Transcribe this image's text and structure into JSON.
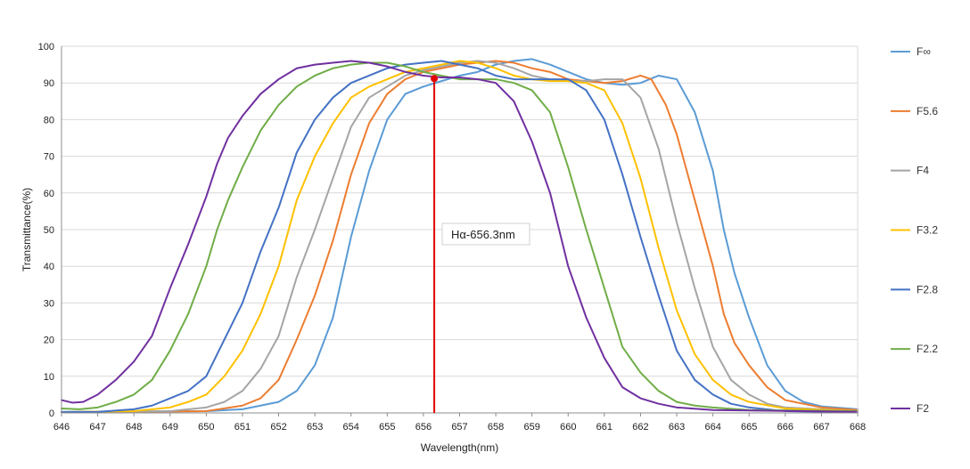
{
  "chart_data": {
    "type": "line",
    "title": "",
    "xlabel": "Wavelength(nm)",
    "ylabel": "Transmittance(%)",
    "xlim": [
      646,
      668
    ],
    "ylim": [
      0,
      100
    ],
    "xticks": [
      646,
      647,
      648,
      649,
      650,
      651,
      652,
      653,
      654,
      655,
      656,
      657,
      658,
      659,
      660,
      661,
      662,
      663,
      664,
      665,
      666,
      667,
      668
    ],
    "yticks": [
      0,
      10,
      20,
      30,
      40,
      50,
      60,
      70,
      80,
      90,
      100
    ],
    "grid": "horizontal",
    "legend_position": "right",
    "annotation": {
      "label": "Hα-656.3nm",
      "x": 656.3,
      "y": 91.2,
      "color": "#e00000"
    },
    "series": [
      {
        "name": "F∞",
        "color": "#5b9bd5",
        "points": [
          [
            646,
            0.3
          ],
          [
            650,
            0.5
          ],
          [
            651,
            1
          ],
          [
            652,
            3
          ],
          [
            652.5,
            6
          ],
          [
            653,
            13
          ],
          [
            653.5,
            26
          ],
          [
            654,
            48
          ],
          [
            654.5,
            66
          ],
          [
            655,
            80
          ],
          [
            655.5,
            87
          ],
          [
            656,
            89
          ],
          [
            656.5,
            90.5
          ],
          [
            657,
            92
          ],
          [
            657.5,
            93
          ],
          [
            658,
            95
          ],
          [
            658.5,
            96
          ],
          [
            659,
            96.5
          ],
          [
            659.5,
            95
          ],
          [
            660,
            93
          ],
          [
            660.5,
            91
          ],
          [
            661,
            90
          ],
          [
            661.5,
            89.5
          ],
          [
            662,
            90
          ],
          [
            662.5,
            92
          ],
          [
            663,
            91
          ],
          [
            663.5,
            82
          ],
          [
            664,
            66
          ],
          [
            664.3,
            50
          ],
          [
            664.6,
            38
          ],
          [
            665,
            26
          ],
          [
            665.5,
            13
          ],
          [
            666,
            6
          ],
          [
            666.5,
            3
          ],
          [
            667,
            1.8
          ],
          [
            668,
            1
          ]
        ]
      },
      {
        "name": "F5.6",
        "color": "#ed7d31",
        "points": [
          [
            646,
            0.2
          ],
          [
            650,
            0.5
          ],
          [
            651,
            2
          ],
          [
            651.5,
            4
          ],
          [
            652,
            9
          ],
          [
            652.5,
            20
          ],
          [
            653,
            32
          ],
          [
            653.5,
            47
          ],
          [
            654,
            65
          ],
          [
            654.5,
            79
          ],
          [
            655,
            87
          ],
          [
            655.5,
            91
          ],
          [
            656,
            93
          ],
          [
            656.5,
            94
          ],
          [
            657,
            95
          ],
          [
            657.5,
            95.5
          ],
          [
            658,
            96
          ],
          [
            658.5,
            95.5
          ],
          [
            659,
            94
          ],
          [
            659.5,
            93
          ],
          [
            660,
            91
          ],
          [
            660.5,
            90.5
          ],
          [
            661,
            90
          ],
          [
            661.5,
            90.5
          ],
          [
            662,
            92
          ],
          [
            662.3,
            91
          ],
          [
            662.7,
            84
          ],
          [
            663,
            76
          ],
          [
            663.5,
            58
          ],
          [
            664,
            40
          ],
          [
            664.3,
            27
          ],
          [
            664.6,
            19
          ],
          [
            665,
            13
          ],
          [
            665.5,
            7
          ],
          [
            666,
            3.5
          ],
          [
            667,
            1.5
          ],
          [
            668,
            0.8
          ]
        ]
      },
      {
        "name": "F4",
        "color": "#a5a5a5",
        "points": [
          [
            646,
            0.2
          ],
          [
            649,
            0.5
          ],
          [
            650,
            1.5
          ],
          [
            650.5,
            3
          ],
          [
            651,
            6
          ],
          [
            651.5,
            12
          ],
          [
            652,
            21
          ],
          [
            652.5,
            37
          ],
          [
            653,
            50
          ],
          [
            653.5,
            64
          ],
          [
            654,
            78
          ],
          [
            654.5,
            86
          ],
          [
            655,
            89
          ],
          [
            655.5,
            92
          ],
          [
            656,
            93.5
          ],
          [
            656.5,
            94.5
          ],
          [
            657,
            95.5
          ],
          [
            657.5,
            96
          ],
          [
            658,
            95.5
          ],
          [
            658.5,
            94
          ],
          [
            659,
            92
          ],
          [
            659.5,
            91
          ],
          [
            660,
            90.5
          ],
          [
            660.5,
            90.5
          ],
          [
            661,
            91
          ],
          [
            661.5,
            91
          ],
          [
            662,
            86
          ],
          [
            662.5,
            72
          ],
          [
            663,
            52
          ],
          [
            663.5,
            34
          ],
          [
            664,
            18
          ],
          [
            664.5,
            9
          ],
          [
            665,
            5
          ],
          [
            665.5,
            2.5
          ],
          [
            666,
            1.5
          ],
          [
            668,
            0.5
          ]
        ]
      },
      {
        "name": "F3.2",
        "color": "#ffc000",
        "points": [
          [
            646,
            0.2
          ],
          [
            648,
            0.5
          ],
          [
            649,
            1.5
          ],
          [
            649.5,
            3
          ],
          [
            650,
            5
          ],
          [
            650.5,
            10
          ],
          [
            651,
            17
          ],
          [
            651.5,
            27
          ],
          [
            652,
            40
          ],
          [
            652.5,
            58
          ],
          [
            653,
            70
          ],
          [
            653.5,
            79
          ],
          [
            654,
            86
          ],
          [
            654.5,
            89
          ],
          [
            655,
            91
          ],
          [
            655.5,
            93
          ],
          [
            656,
            94
          ],
          [
            656.5,
            95
          ],
          [
            657,
            96
          ],
          [
            657.5,
            95.5
          ],
          [
            658,
            94
          ],
          [
            658.5,
            92
          ],
          [
            659,
            91
          ],
          [
            659.5,
            90.5
          ],
          [
            660,
            90.5
          ],
          [
            660.5,
            90
          ],
          [
            661,
            88
          ],
          [
            661.5,
            79
          ],
          [
            662,
            64
          ],
          [
            662.5,
            45
          ],
          [
            663,
            28
          ],
          [
            663.5,
            16
          ],
          [
            664,
            9
          ],
          [
            664.5,
            5
          ],
          [
            665,
            3
          ],
          [
            666,
            1.2
          ],
          [
            668,
            0.5
          ]
        ]
      },
      {
        "name": "F2.8",
        "color": "#4472c4",
        "points": [
          [
            646,
            0.2
          ],
          [
            647,
            0.3
          ],
          [
            648,
            1
          ],
          [
            648.5,
            2
          ],
          [
            649,
            4
          ],
          [
            649.5,
            6
          ],
          [
            650,
            10
          ],
          [
            650.5,
            20
          ],
          [
            651,
            30
          ],
          [
            651.5,
            44
          ],
          [
            652,
            56
          ],
          [
            652.5,
            71
          ],
          [
            653,
            80
          ],
          [
            653.5,
            86
          ],
          [
            654,
            90
          ],
          [
            654.5,
            92
          ],
          [
            655,
            94
          ],
          [
            655.5,
            95
          ],
          [
            656,
            95.5
          ],
          [
            656.5,
            96
          ],
          [
            657,
            95
          ],
          [
            657.5,
            94
          ],
          [
            658,
            92
          ],
          [
            658.5,
            91
          ],
          [
            659,
            91
          ],
          [
            659.5,
            91
          ],
          [
            660,
            91
          ],
          [
            660.5,
            88
          ],
          [
            661,
            80
          ],
          [
            661.5,
            65
          ],
          [
            662,
            48
          ],
          [
            662.5,
            32
          ],
          [
            663,
            17
          ],
          [
            663.5,
            9
          ],
          [
            664,
            5
          ],
          [
            664.5,
            2.5
          ],
          [
            665,
            1.5
          ],
          [
            666,
            0.5
          ],
          [
            668,
            0.2
          ]
        ]
      },
      {
        "name": "F2.2",
        "color": "#70ad47",
        "points": [
          [
            646,
            1.2
          ],
          [
            646.5,
            1
          ],
          [
            647,
            1.5
          ],
          [
            647.5,
            3
          ],
          [
            648,
            5
          ],
          [
            648.5,
            9
          ],
          [
            649,
            17
          ],
          [
            649.5,
            27
          ],
          [
            650,
            40
          ],
          [
            650.3,
            50
          ],
          [
            650.6,
            58
          ],
          [
            651,
            67
          ],
          [
            651.5,
            77
          ],
          [
            652,
            84
          ],
          [
            652.5,
            89
          ],
          [
            653,
            92
          ],
          [
            653.5,
            94
          ],
          [
            654,
            95
          ],
          [
            654.5,
            95.5
          ],
          [
            655,
            95.5
          ],
          [
            655.5,
            94.5
          ],
          [
            656,
            93
          ],
          [
            656.5,
            92
          ],
          [
            657,
            91
          ],
          [
            657.5,
            91
          ],
          [
            658,
            91
          ],
          [
            658.5,
            90
          ],
          [
            659,
            88
          ],
          [
            659.5,
            82
          ],
          [
            660,
            67
          ],
          [
            660.5,
            50
          ],
          [
            661,
            34
          ],
          [
            661.5,
            18
          ],
          [
            662,
            11
          ],
          [
            662.5,
            6
          ],
          [
            663,
            3
          ],
          [
            663.5,
            2
          ],
          [
            664,
            1.5
          ],
          [
            665,
            0.8
          ],
          [
            668,
            0.5
          ]
        ]
      },
      {
        "name": "F2",
        "color": "#7030a0",
        "points": [
          [
            646,
            3.5
          ],
          [
            646.3,
            2.8
          ],
          [
            646.6,
            3
          ],
          [
            647,
            5
          ],
          [
            647.5,
            9
          ],
          [
            648,
            14
          ],
          [
            648.5,
            21
          ],
          [
            649,
            34
          ],
          [
            649.5,
            46
          ],
          [
            650,
            59
          ],
          [
            650.3,
            68
          ],
          [
            650.6,
            75
          ],
          [
            651,
            81
          ],
          [
            651.5,
            87
          ],
          [
            652,
            91
          ],
          [
            652.5,
            94
          ],
          [
            653,
            95
          ],
          [
            653.5,
            95.5
          ],
          [
            654,
            96
          ],
          [
            654.5,
            95.5
          ],
          [
            655,
            94.5
          ],
          [
            655.5,
            93
          ],
          [
            656,
            92
          ],
          [
            656.5,
            91.5
          ],
          [
            657,
            91.5
          ],
          [
            657.5,
            91
          ],
          [
            658,
            90
          ],
          [
            658.5,
            85
          ],
          [
            659,
            74
          ],
          [
            659.5,
            60
          ],
          [
            660,
            40
          ],
          [
            660.5,
            26
          ],
          [
            661,
            15
          ],
          [
            661.5,
            7
          ],
          [
            662,
            4
          ],
          [
            662.5,
            2.5
          ],
          [
            663,
            1.5
          ],
          [
            664,
            0.8
          ],
          [
            668,
            0.3
          ]
        ]
      }
    ]
  }
}
